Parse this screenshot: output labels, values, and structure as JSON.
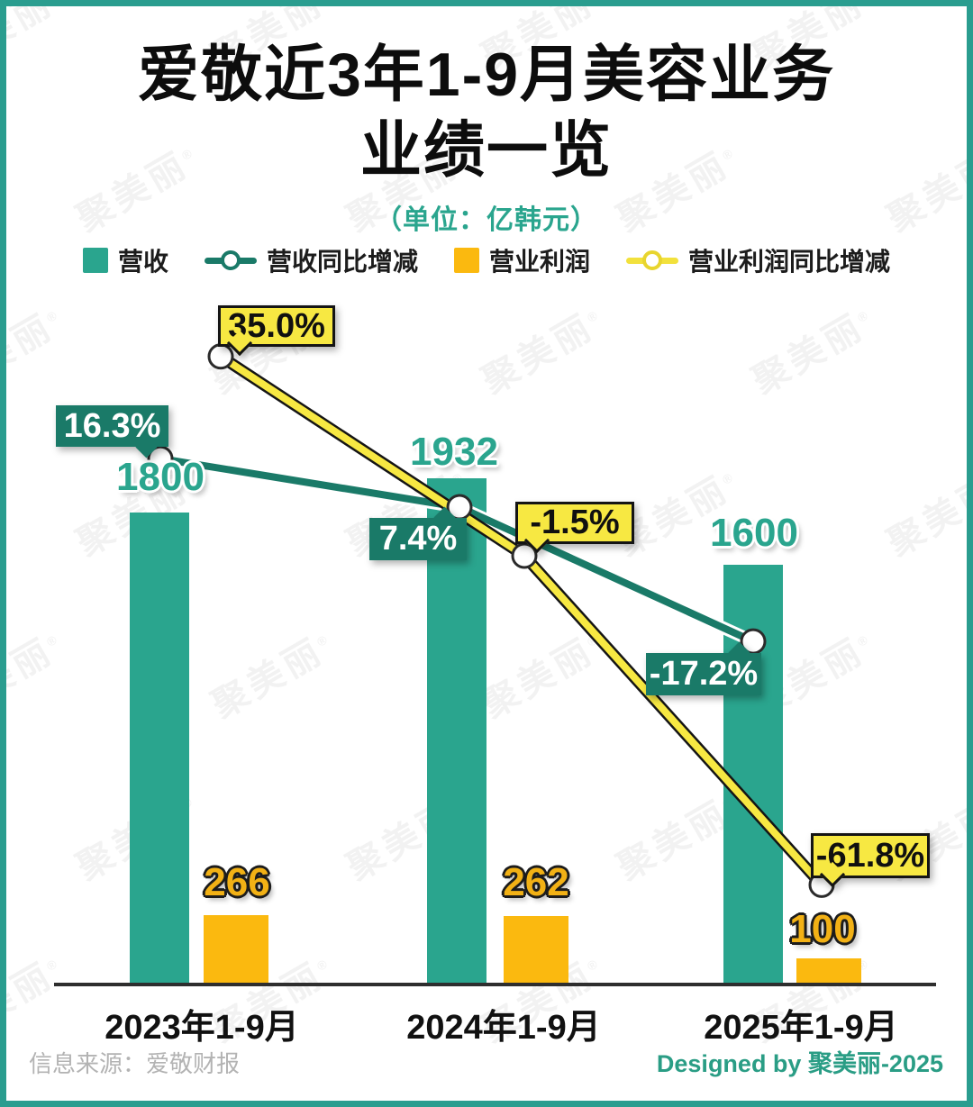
{
  "title": {
    "line1": "爱敬近3年1-9月美容业务",
    "line2": "业绩一览",
    "subtitle": "（单位：亿韩元）"
  },
  "legend": {
    "revenue": "营收",
    "revenue_yoy": "营收同比增减",
    "profit": "营业利润",
    "profit_yoy": "营业利润同比增减"
  },
  "chart_data": {
    "type": "bar+line",
    "unit": "亿韩元",
    "categories": [
      "2023年1-9月",
      "2024年1-9月",
      "2025年1-9月"
    ],
    "series": [
      {
        "name": "营收",
        "type": "bar",
        "color": "#2aa58e",
        "values": [
          1800,
          1932,
          1600
        ]
      },
      {
        "name": "营业利润",
        "type": "bar",
        "color": "#fbb90f",
        "values": [
          266,
          262,
          100
        ]
      },
      {
        "name": "营收同比增减",
        "type": "line",
        "color": "#1a7a68",
        "values_pct": [
          16.3,
          7.4,
          -17.2
        ],
        "labels": [
          "16.3%",
          "7.4%",
          "-17.2%"
        ]
      },
      {
        "name": "营业利润同比增减",
        "type": "line",
        "color": "#f7e842",
        "values_pct": [
          35.0,
          -1.5,
          -61.8
        ],
        "labels": [
          "35.0%",
          "-1.5%",
          "-61.8%"
        ]
      }
    ],
    "layout": {
      "legend_position": "top",
      "grid": false,
      "bar_axis_min": 0,
      "value_labels_shown": true
    }
  },
  "colors": {
    "frame": "#2a9d8f",
    "bar_revenue": "#2aa58e",
    "bar_profit": "#fbb90f",
    "line_revenue_yoy": "#1a7a68",
    "line_profit_yoy": "#f7e842",
    "subtitle": "#2aa58e",
    "credit": "#2a9d85"
  },
  "footer": {
    "source": "信息来源：爱敬财报",
    "credit": "Designed by 聚美丽-2025"
  },
  "watermark": "聚美丽"
}
